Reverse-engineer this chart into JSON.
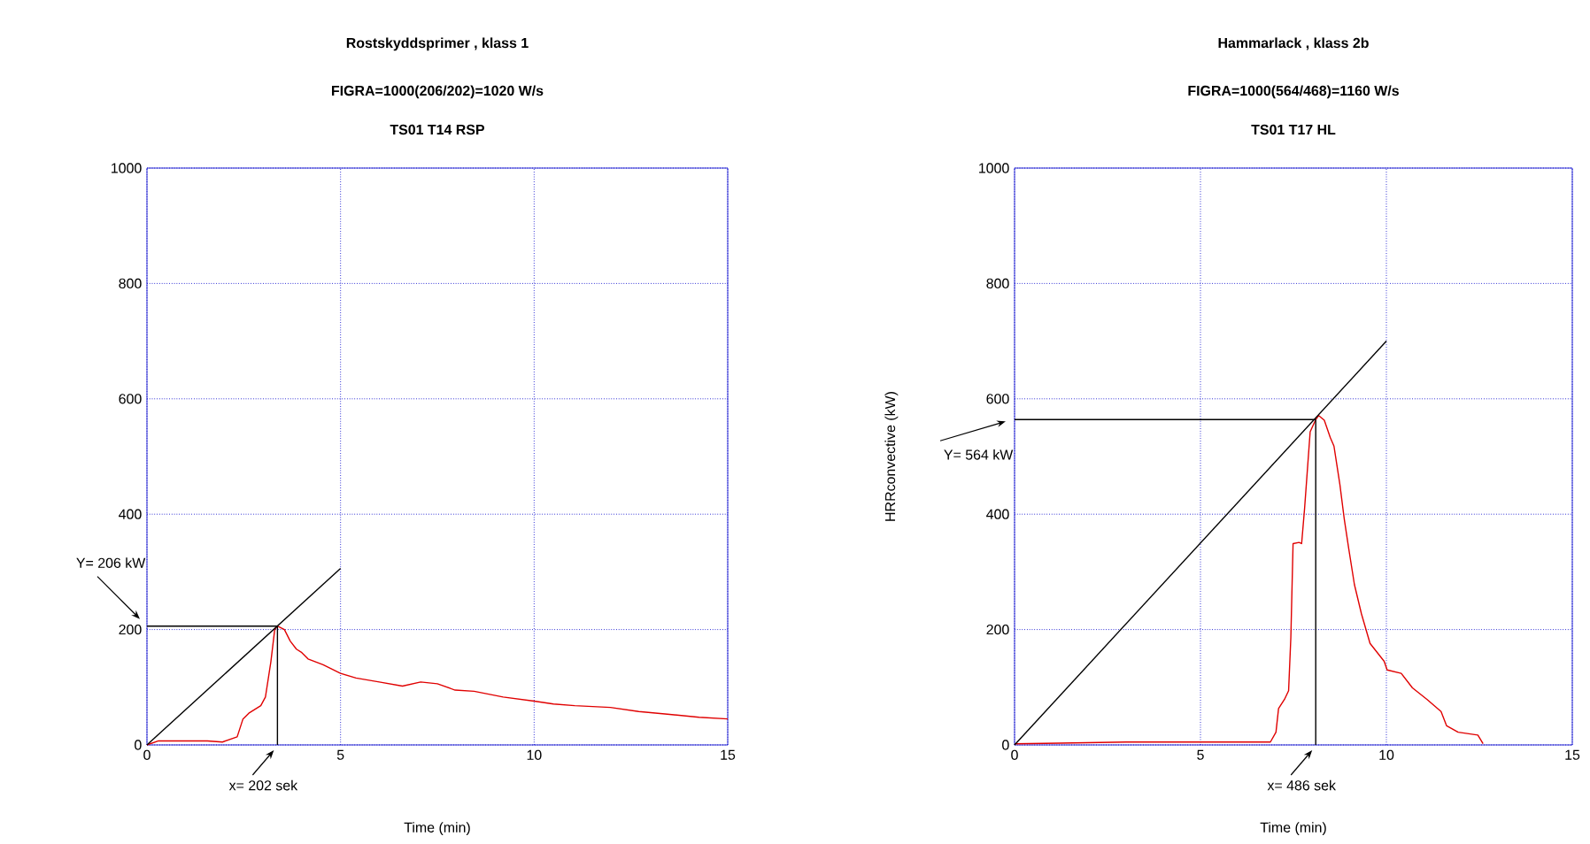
{
  "chart_data": [
    {
      "type": "line",
      "title": "Rostskyddsprimer , klass 1",
      "subtitle": "FIGRA=1000(206/202)=1020 W/s",
      "xlabel": "Time (min)",
      "xlim": [
        0,
        15
      ],
      "ylim": [
        0,
        1000
      ],
      "xticks": [
        0,
        5,
        10,
        15
      ],
      "yticks": [
        0,
        200,
        400,
        600,
        800,
        1000
      ],
      "grid": true,
      "annotations": [
        "TS01 T14 RSP",
        {
          "text": "Y= 206 kW",
          "x": 0,
          "y": 206
        },
        {
          "text": "x= 202 sek",
          "x": 3.37,
          "y": 0
        }
      ],
      "series": [
        {
          "color": "#e00000",
          "x": [
            0,
            0.3,
            0.8,
            1.56,
            1.95,
            2.33,
            2.48,
            2.63,
            2.94,
            3.06,
            3.2,
            3.3,
            3.37,
            3.55,
            3.7,
            3.86,
            4.0,
            4.16,
            4.55,
            5.0,
            5.4,
            6.0,
            6.6,
            7.07,
            7.5,
            7.96,
            8.45,
            9.2,
            10.0,
            10.5,
            11.05,
            11.97,
            12.7,
            13.5,
            14.26,
            15
          ],
          "values": [
            0,
            7,
            7,
            7,
            5,
            14,
            45,
            55,
            68,
            83,
            144,
            200,
            206,
            200,
            180,
            166,
            160,
            149,
            139,
            124,
            116,
            109,
            102,
            109,
            106,
            95,
            93,
            83,
            76,
            71,
            68,
            65,
            58,
            53,
            48,
            45
          ]
        },
        {
          "color": "#000000",
          "x": [
            0,
            5
          ],
          "values": [
            0,
            306
          ]
        },
        {
          "color": "#000000",
          "x": [
            0,
            3.37
          ],
          "values": [
            206,
            206
          ]
        },
        {
          "color": "#000000",
          "x": [
            3.37,
            3.37
          ],
          "values": [
            0,
            206
          ]
        }
      ]
    },
    {
      "type": "line",
      "title": "Hammarlack , klass 2b",
      "subtitle": "FIGRA=1000(564/468)=1160 W/s",
      "xlabel": "Time (min)",
      "ylabel": "HRRconvective (kW)",
      "xlim": [
        0,
        15
      ],
      "ylim": [
        0,
        1000
      ],
      "xticks": [
        0,
        5,
        10,
        15
      ],
      "yticks": [
        0,
        200,
        400,
        600,
        800,
        1000
      ],
      "grid": true,
      "annotations": [
        "TS01 T17 HL",
        {
          "text": "Y= 564 kW",
          "x": 0,
          "y": 564
        },
        {
          "text": "x= 486 sek",
          "x": 8.1,
          "y": 0
        }
      ],
      "series": [
        {
          "color": "#e00000",
          "x": [
            0,
            1.22,
            3.06,
            3.82,
            5.35,
            6.35,
            6.88,
            7.03,
            7.1,
            7.26,
            7.37,
            7.43,
            7.49,
            7.65,
            7.72,
            7.8,
            7.95,
            8.1,
            8.18,
            8.33,
            8.49,
            8.59,
            8.75,
            8.87,
            8.99,
            9.14,
            9.33,
            9.56,
            9.94,
            10.02,
            10.4,
            10.7,
            11.09,
            11.47,
            11.62,
            11.93,
            12.46,
            12.6
          ],
          "values": [
            2,
            3,
            5,
            5,
            5,
            5,
            5,
            22,
            63,
            79,
            94,
            186,
            349,
            351,
            349,
            410,
            543,
            564,
            571,
            563,
            533,
            518,
            451,
            390,
            339,
            278,
            227,
            176,
            145,
            130,
            124,
            99,
            79,
            58,
            33,
            22,
            17,
            2
          ]
        },
        {
          "color": "#000000",
          "x": [
            0,
            10
          ],
          "values": [
            0,
            700
          ]
        },
        {
          "color": "#000000",
          "x": [
            0,
            8.1
          ],
          "values": [
            564,
            564
          ]
        },
        {
          "color": "#000000",
          "x": [
            8.1,
            8.1
          ],
          "values": [
            0,
            564
          ]
        }
      ]
    }
  ]
}
